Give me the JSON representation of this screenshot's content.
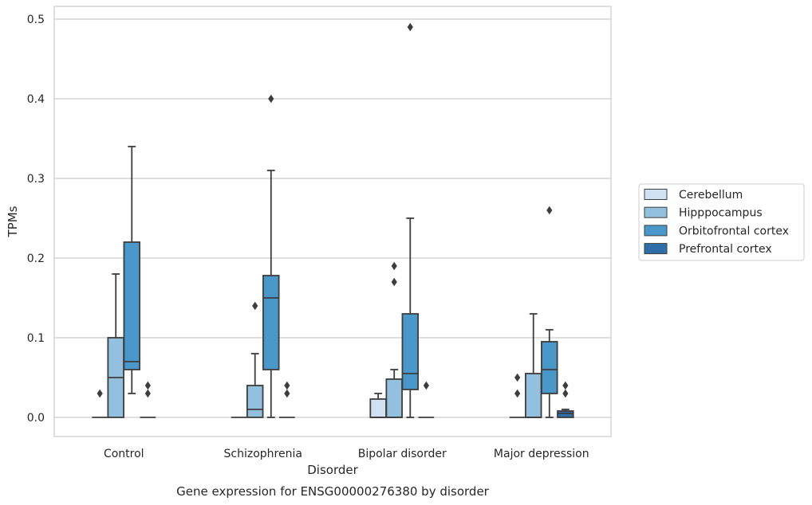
{
  "chart_data": {
    "type": "box",
    "title": "",
    "caption": "Gene expression for ENSG00000276380 by disorder",
    "xlabel": "Disorder",
    "ylabel": "TPMs",
    "ylim": [
      -0.024,
      0.516
    ],
    "yticks": [
      0.0,
      0.1,
      0.2,
      0.3,
      0.4,
      0.5
    ],
    "ytick_labels": [
      "0.0",
      "0.1",
      "0.2",
      "0.3",
      "0.4",
      "0.5"
    ],
    "categories": [
      "Control",
      "Schizophrenia",
      "Bipolar disorder",
      "Major depression"
    ],
    "grid": "horizontal",
    "legend_position": "right",
    "series": [
      {
        "name": "Cerebellum",
        "color": "#d0e1f2",
        "boxes": [
          {
            "q1": 0,
            "median": 0,
            "q3": 0,
            "whisker_low": 0,
            "whisker_high": 0,
            "outliers": [
              0.03
            ]
          },
          {
            "q1": 0,
            "median": 0,
            "q3": 0,
            "whisker_low": 0,
            "whisker_high": 0,
            "outliers": []
          },
          {
            "q1": 0,
            "median": 0,
            "q3": 0.023,
            "whisker_low": 0,
            "whisker_high": 0.03,
            "outliers": []
          },
          {
            "q1": 0,
            "median": 0,
            "q3": 0,
            "whisker_low": 0,
            "whisker_high": 0,
            "outliers": [
              0.03,
              0.05
            ]
          }
        ]
      },
      {
        "name": "Hipppocampus",
        "color": "#93c0de",
        "boxes": [
          {
            "q1": 0,
            "median": 0.05,
            "q3": 0.1,
            "whisker_low": 0,
            "whisker_high": 0.18,
            "outliers": []
          },
          {
            "q1": 0,
            "median": 0.01,
            "q3": 0.04,
            "whisker_low": 0,
            "whisker_high": 0.08,
            "outliers": [
              0.14
            ]
          },
          {
            "q1": 0,
            "median": 0,
            "q3": 0.048,
            "whisker_low": 0,
            "whisker_high": 0.06,
            "outliers": [
              0.17,
              0.19
            ]
          },
          {
            "q1": 0,
            "median": 0,
            "q3": 0.055,
            "whisker_low": 0,
            "whisker_high": 0.13,
            "outliers": []
          }
        ]
      },
      {
        "name": "Orbitofrontal cortex",
        "color": "#4a98c9",
        "boxes": [
          {
            "q1": 0.06,
            "median": 0.07,
            "q3": 0.22,
            "whisker_low": 0.03,
            "whisker_high": 0.34,
            "outliers": []
          },
          {
            "q1": 0.06,
            "median": 0.15,
            "q3": 0.178,
            "whisker_low": 0,
            "whisker_high": 0.31,
            "outliers": [
              0.4
            ]
          },
          {
            "q1": 0.035,
            "median": 0.055,
            "q3": 0.13,
            "whisker_low": 0,
            "whisker_high": 0.25,
            "outliers": [
              0.49
            ]
          },
          {
            "q1": 0.03,
            "median": 0.06,
            "q3": 0.095,
            "whisker_low": 0,
            "whisker_high": 0.11,
            "outliers": [
              0.26
            ]
          }
        ]
      },
      {
        "name": "Prefrontal cortex",
        "color": "#2f6ea8",
        "boxes": [
          {
            "q1": 0,
            "median": 0,
            "q3": 0,
            "whisker_low": 0,
            "whisker_high": 0,
            "outliers": [
              0.03,
              0.04
            ]
          },
          {
            "q1": 0,
            "median": 0,
            "q3": 0,
            "whisker_low": 0,
            "whisker_high": 0,
            "outliers": [
              0.03,
              0.04
            ]
          },
          {
            "q1": 0,
            "median": 0,
            "q3": 0,
            "whisker_low": 0,
            "whisker_high": 0,
            "outliers": [
              0.04
            ]
          },
          {
            "q1": 0,
            "median": 0.005,
            "q3": 0.008,
            "whisker_low": 0,
            "whisker_high": 0.01,
            "outliers": [
              0.03,
              0.04
            ]
          }
        ]
      }
    ]
  }
}
